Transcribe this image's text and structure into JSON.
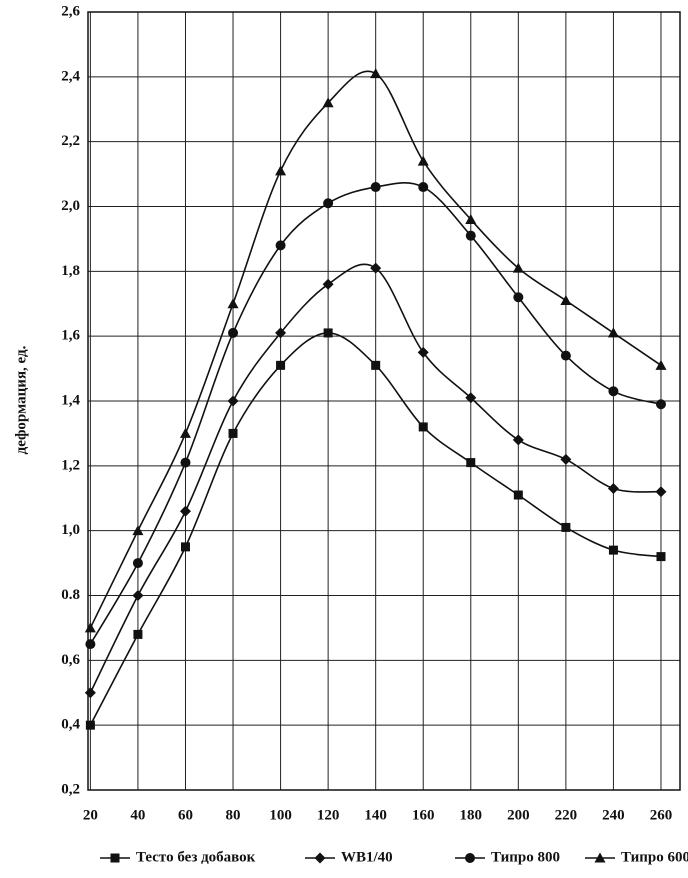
{
  "chart_data": {
    "type": "line",
    "y_label": "деформация, ед.",
    "x": [
      20,
      40,
      60,
      80,
      100,
      120,
      140,
      160,
      180,
      200,
      220,
      240,
      260
    ],
    "xlim": [
      19,
      268
    ],
    "xticks": [
      20,
      40,
      60,
      80,
      100,
      120,
      140,
      160,
      180,
      200,
      220,
      240,
      260
    ],
    "ylim": [
      0.2,
      2.6
    ],
    "yticks": [
      {
        "value": 0.2,
        "label": "0,2"
      },
      {
        "value": 0.4,
        "label": "0,4"
      },
      {
        "value": 0.6,
        "label": "0,6"
      },
      {
        "value": 0.8,
        "label": "0.8"
      },
      {
        "value": 1.0,
        "label": "1,0"
      },
      {
        "value": 1.2,
        "label": "1,2"
      },
      {
        "value": 1.4,
        "label": "1,4"
      },
      {
        "value": 1.6,
        "label": "1,6"
      },
      {
        "value": 1.8,
        "label": "1,8"
      },
      {
        "value": 2.0,
        "label": "2,0"
      },
      {
        "value": 2.2,
        "label": "2,2"
      },
      {
        "value": 2.4,
        "label": "2,4"
      },
      {
        "value": 2.6,
        "label": "2,6"
      }
    ],
    "grid": true,
    "legend": "bottom",
    "series": [
      {
        "name": "Тесто без добавок",
        "color": "#111111",
        "marker": "square",
        "values": [
          0.4,
          0.68,
          0.95,
          1.3,
          1.51,
          1.61,
          1.51,
          1.32,
          1.21,
          1.11,
          1.01,
          0.94,
          0.92
        ]
      },
      {
        "name": "WB1/40",
        "color": "#111111",
        "marker": "diamond",
        "values": [
          0.5,
          0.8,
          1.06,
          1.4,
          1.61,
          1.76,
          1.81,
          1.55,
          1.41,
          1.28,
          1.22,
          1.13,
          1.12
        ]
      },
      {
        "name": "Типро 800",
        "color": "#111111",
        "marker": "circle",
        "values": [
          0.65,
          0.9,
          1.21,
          1.61,
          1.88,
          2.01,
          2.06,
          2.06,
          1.91,
          1.72,
          1.54,
          1.43,
          1.39
        ]
      },
      {
        "name": "Типро 600",
        "color": "#111111",
        "marker": "triangle",
        "values": [
          0.7,
          1.0,
          1.3,
          1.7,
          2.11,
          2.32,
          2.41,
          2.14,
          1.96,
          1.81,
          1.71,
          1.61,
          1.51
        ]
      }
    ]
  }
}
